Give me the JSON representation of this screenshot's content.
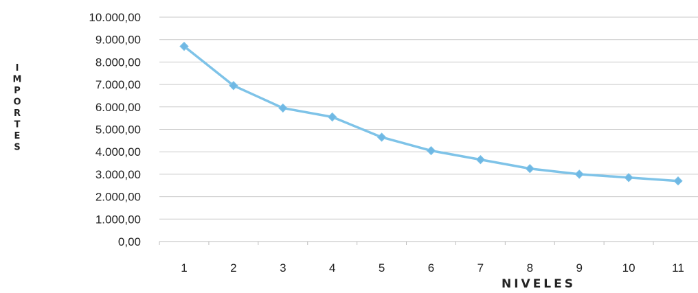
{
  "chart_data": {
    "type": "line",
    "title": "",
    "xlabel": "NIVELES",
    "ylabel": "IMPORTES",
    "categories": [
      "1",
      "2",
      "3",
      "4",
      "5",
      "6",
      "7",
      "8",
      "9",
      "10",
      "11"
    ],
    "series": [
      {
        "values": [
          8700,
          6950,
          5950,
          5550,
          4650,
          4050,
          3650,
          3250,
          3000,
          2850,
          2700
        ]
      }
    ],
    "ylim": [
      0,
      10000
    ],
    "yticks": [
      "0,00",
      "1.000,00",
      "2.000,00",
      "3.000,00",
      "4.000,00",
      "5.000,00",
      "6.000,00",
      "7.000,00",
      "8.000,00",
      "9.000,00",
      "10.000,00"
    ],
    "grid": true,
    "legend": "none",
    "colors": {
      "line": "#7ec3e8",
      "marker": "#6fb8e4",
      "grid": "#c9c9c9",
      "axis": "#bdbdbd",
      "text": "#222222"
    }
  }
}
